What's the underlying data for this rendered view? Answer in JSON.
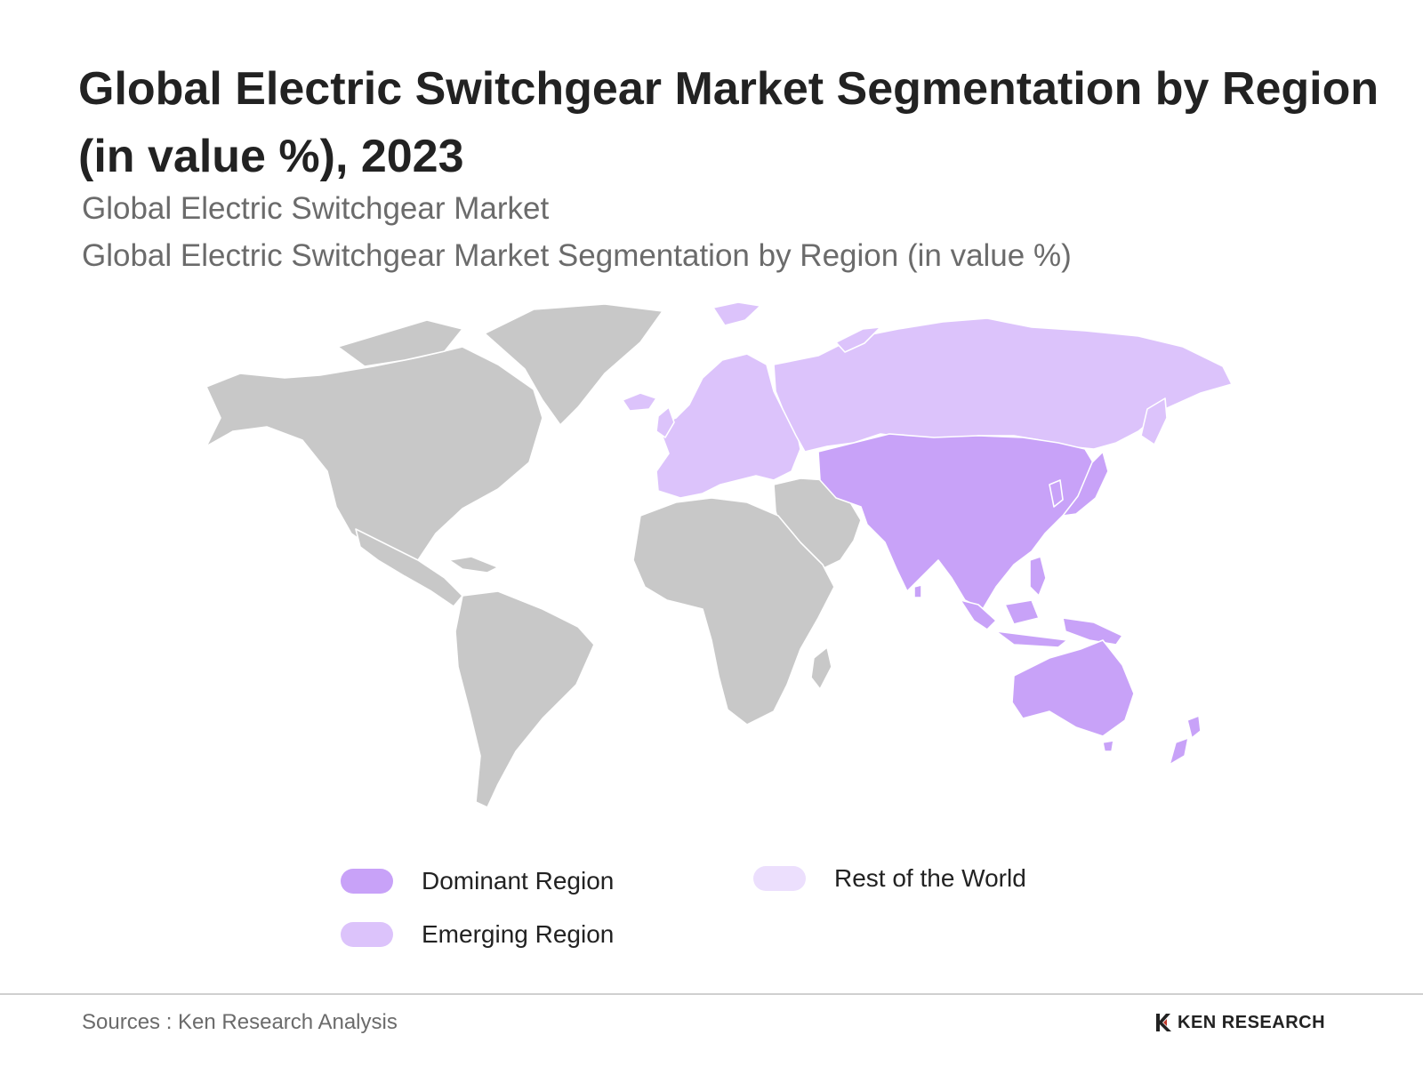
{
  "title": "Global Electric Switchgear Market Segmentation by Region (in value %), 2023",
  "subtitle_1": "Global Electric Switchgear Market",
  "subtitle_2": "Global Electric Switchgear Market Segmentation by Region (in value %)",
  "map": {
    "base_color": "#c8c8c8",
    "regions": [
      {
        "name": "Asia Pacific",
        "category": "dominant"
      },
      {
        "name": "Europe",
        "category": "emerging"
      },
      {
        "name": "Russia",
        "category": "emerging"
      },
      {
        "name": "North America",
        "category": "none"
      },
      {
        "name": "Latin America",
        "category": "none"
      },
      {
        "name": "Middle East",
        "category": "none"
      },
      {
        "name": "Africa",
        "category": "none"
      }
    ]
  },
  "legend": [
    {
      "label": "Dominant Region",
      "color": "#c8a2f8"
    },
    {
      "label": "Emerging Region",
      "color": "#dcc3fb"
    },
    {
      "label": "Rest of the World",
      "color": "#ecdffd"
    }
  ],
  "source": "Sources : Ken Research Analysis",
  "logo": {
    "text": "KEN RESEARCH",
    "icon": "ken-research-logo-icon"
  }
}
